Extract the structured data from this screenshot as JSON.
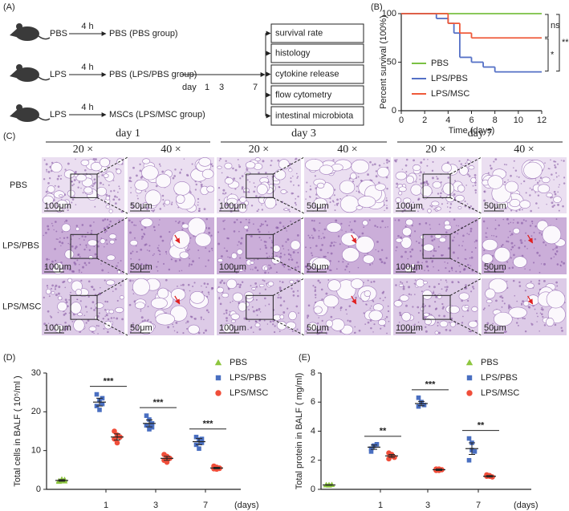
{
  "panel_labels": [
    "(A)",
    "(B)",
    "(C)",
    "(D)",
    "(E)"
  ],
  "diagram": {
    "groups": [
      {
        "treatment": "PBS",
        "time": "4 h",
        "outcome": "PBS (PBS group)"
      },
      {
        "treatment": "LPS",
        "time": "4 h",
        "outcome": "PBS (LPS/PBS group)"
      },
      {
        "treatment": "LPS",
        "time": "4 h",
        "outcome": "MSCs (LPS/MSC group)"
      }
    ],
    "timeline": {
      "label": "day",
      "days": [
        "1",
        "3",
        "7"
      ]
    },
    "readouts": [
      "survival rate",
      "histology",
      "cytokine release",
      "flow cytometry",
      "intestinal microbiota"
    ]
  },
  "histology": {
    "days": [
      "day 1",
      "day 3",
      "day 7"
    ],
    "magnifications": [
      "20 ×",
      "40 ×"
    ],
    "rows": [
      "PBS",
      "LPS/PBS",
      "LPS/MSC"
    ],
    "scale_bars": [
      "100μm",
      "50μm"
    ]
  },
  "chart_data": [
    {
      "type": "step",
      "xlabel": "Time (days)",
      "ylabel": "Percent survival (100%)",
      "xlim": [
        0,
        12
      ],
      "xticks": [
        0,
        2,
        4,
        6,
        8,
        10,
        12
      ],
      "ylim": [
        0,
        100
      ],
      "yticks": [
        0,
        50,
        100
      ],
      "series": [
        {
          "name": "PBS",
          "color": "#7ac143",
          "x": [
            0,
            12
          ],
          "values": [
            100,
            100
          ]
        },
        {
          "name": "LPS/PBS",
          "color": "#5470c6",
          "x": [
            0,
            3,
            4,
            4.5,
            5,
            6,
            7,
            8,
            12
          ],
          "values": [
            100,
            95,
            90,
            80,
            55,
            50,
            45,
            40,
            40
          ]
        },
        {
          "name": "LPS/MSC",
          "color": "#ef5a3a",
          "x": [
            0,
            4,
            5,
            6,
            12
          ],
          "values": [
            100,
            90,
            80,
            75,
            75
          ]
        }
      ],
      "annotations": [
        "ns",
        "*",
        "**"
      ]
    },
    {
      "type": "dot",
      "ylabel": "Total cells in BALF ( 10⁵/ml )",
      "xlabel": "(days)",
      "categories": [
        null,
        "1",
        "3",
        "7"
      ],
      "ylim": [
        0,
        30
      ],
      "yticks": [
        0,
        10,
        20,
        30
      ],
      "series": [
        {
          "name": "PBS",
          "color": "#8dc63f",
          "marker": "triangle",
          "values": [
            2.3,
            null,
            null,
            null
          ],
          "errors": [
            0.2,
            null,
            null,
            null
          ],
          "points": [
            [
              2.0,
              2.3,
              2.5,
              2.2,
              2.6,
              2.1
            ],
            null,
            null,
            null
          ]
        },
        {
          "name": "LPS/PBS",
          "color": "#4a6fc1",
          "marker": "square",
          "values": [
            null,
            22.5,
            17,
            12.3
          ],
          "errors": [
            null,
            1.0,
            0.9,
            0.8
          ],
          "points": [
            null,
            [
              24.5,
              23,
              22,
              21.5,
              20.5,
              23.5
            ],
            [
              19,
              18,
              17,
              16.5,
              15.5,
              16
            ],
            [
              13.5,
              12.8,
              12,
              11.5,
              10.5,
              13
            ]
          ]
        },
        {
          "name": "LPS/MSC",
          "color": "#f04e3a",
          "marker": "circle",
          "values": [
            null,
            13.5,
            8,
            5.5
          ],
          "errors": [
            null,
            0.8,
            0.5,
            0.2
          ],
          "points": [
            null,
            [
              15,
              14,
              13.5,
              13,
              12,
              13.5
            ],
            [
              9,
              8.5,
              8,
              7.5,
              7,
              8
            ],
            [
              6,
              5.7,
              5.5,
              5.3,
              5.2,
              5.4
            ]
          ]
        }
      ],
      "significance": [
        null,
        "***",
        "***",
        "***"
      ]
    },
    {
      "type": "dot",
      "ylabel": "Total protein in BALF ( mg/ml)",
      "xlabel": "(days)",
      "categories": [
        null,
        "1",
        "3",
        "7"
      ],
      "ylim": [
        0,
        8
      ],
      "yticks": [
        0,
        2,
        4,
        6,
        8
      ],
      "series": [
        {
          "name": "PBS",
          "color": "#8dc63f",
          "marker": "triangle",
          "values": [
            0.3,
            null,
            null,
            null
          ],
          "errors": [
            0.02,
            null,
            null,
            null
          ],
          "points": [
            [
              0.3,
              0.28,
              0.32,
              0.3,
              0.31
            ],
            null,
            null,
            null
          ]
        },
        {
          "name": "LPS/PBS",
          "color": "#4a6fc1",
          "marker": "square",
          "values": [
            null,
            2.9,
            5.9,
            2.8
          ],
          "errors": [
            null,
            0.15,
            0.15,
            0.4
          ],
          "points": [
            null,
            [
              2.6,
              3.0,
              3.1,
              2.8,
              3.0
            ],
            [
              6.3,
              6.0,
              5.8,
              5.7,
              6.0
            ],
            [
              3.5,
              3.2,
              2.6,
              2.0,
              2.7
            ]
          ]
        },
        {
          "name": "LPS/MSC",
          "color": "#f04e3a",
          "marker": "circle",
          "values": [
            null,
            2.3,
            1.35,
            0.9
          ],
          "errors": [
            null,
            0.1,
            0.05,
            0.05
          ],
          "points": [
            null,
            [
              2.5,
              2.3,
              2.2,
              2.1,
              2.4
            ],
            [
              1.4,
              1.3,
              1.35,
              1.3,
              1.4
            ],
            [
              1.0,
              0.9,
              0.85,
              0.9,
              0.95
            ]
          ]
        }
      ],
      "significance": [
        null,
        "**",
        "***",
        "**"
      ]
    }
  ]
}
